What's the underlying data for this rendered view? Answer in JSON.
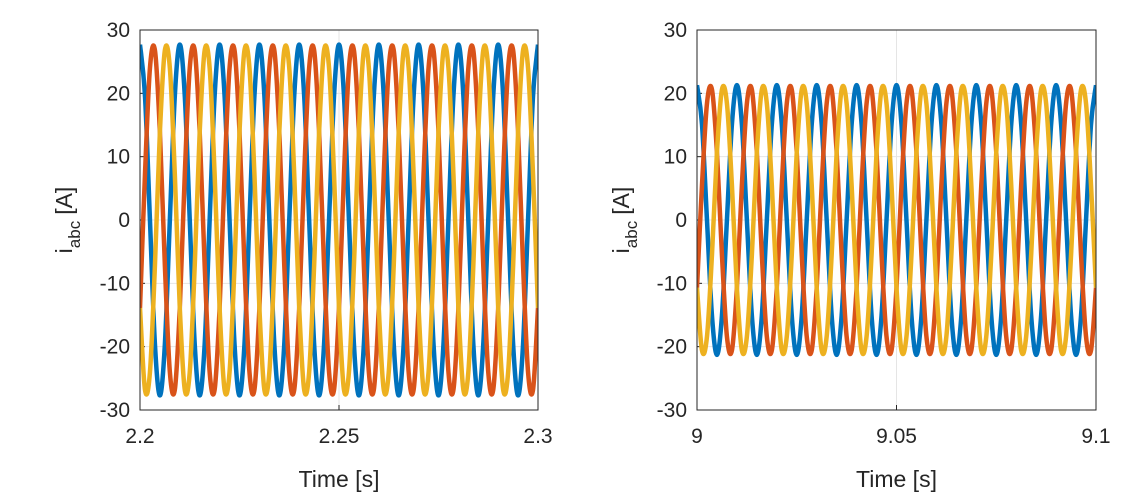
{
  "chart_data": [
    {
      "type": "line",
      "xlabel": "Time [s]",
      "ylabel": [
        "i",
        "abc",
        "[A]"
      ],
      "xlim": [
        2.2,
        2.3
      ],
      "xticks": [
        2.2,
        2.25,
        2.3
      ],
      "ylim": [
        -30,
        30
      ],
      "yticks": [
        30,
        20,
        10,
        0,
        -10,
        -20,
        -30
      ],
      "grid": true,
      "x": [
        2.2,
        2.20125,
        2.2025,
        2.20375,
        2.205,
        2.20625,
        2.2075,
        2.20875,
        2.21,
        2.21125,
        2.2125,
        2.21375,
        2.215,
        2.21625,
        2.2175,
        2.21875,
        2.22,
        2.22125,
        2.2225,
        2.22375,
        2.225,
        2.22625,
        2.2275,
        2.22875,
        2.23,
        2.23125,
        2.2325,
        2.23375,
        2.235,
        2.23625,
        2.2375,
        2.23875,
        2.24,
        2.24125,
        2.2425,
        2.24375,
        2.245,
        2.24625,
        2.2475,
        2.24875,
        2.25,
        2.25125,
        2.2525,
        2.25375,
        2.255,
        2.25625,
        2.2575,
        2.25875,
        2.26,
        2.26125,
        2.2625,
        2.26375,
        2.265,
        2.26625,
        2.2675,
        2.26875,
        2.27,
        2.27125,
        2.2725,
        2.27375,
        2.275,
        2.27625,
        2.2775,
        2.27875,
        2.28,
        2.28125,
        2.2825,
        2.28375,
        2.285,
        2.28625,
        2.2875,
        2.28875,
        2.29,
        2.29125,
        2.2925,
        2.29375,
        2.295,
        2.29625,
        2.2975,
        2.29875,
        2.3
      ],
      "series": [
        {
          "color": "#0072BD",
          "values": [
            27.7,
            19.6,
            0,
            -19.6,
            -27.7,
            -19.6,
            0,
            19.6,
            27.7,
            19.6,
            0,
            -19.6,
            -27.7,
            -19.6,
            0,
            19.6,
            27.7,
            19.6,
            0,
            -19.6,
            -27.7,
            -19.6,
            0,
            19.6,
            27.7,
            19.6,
            0,
            -19.6,
            -27.7,
            -19.6,
            0,
            19.6,
            27.7,
            19.6,
            0,
            -19.6,
            -27.7,
            -19.6,
            0,
            19.6,
            27.7,
            19.6,
            0,
            -19.6,
            -27.7,
            -19.6,
            0,
            19.6,
            27.7,
            19.6,
            0,
            -19.6,
            -27.7,
            -19.6,
            0,
            19.6,
            27.7,
            19.6,
            0,
            -19.6,
            -27.7,
            -19.6,
            0,
            19.6,
            27.7,
            19.6,
            0,
            -19.6,
            -27.7,
            -19.6,
            0,
            19.6,
            27.7,
            19.6,
            0,
            -19.6,
            -27.7,
            -19.6,
            0,
            19.6,
            27.7
          ]
        },
        {
          "color": "#D95319",
          "values": [
            -13.9,
            7.2,
            24.0,
            26.8,
            13.9,
            -7.2,
            -24.0,
            -26.8,
            -13.9,
            7.2,
            24.0,
            26.8,
            13.9,
            -7.2,
            -24.0,
            -26.8,
            -13.9,
            7.2,
            24.0,
            26.8,
            13.9,
            -7.2,
            -24.0,
            -26.8,
            -13.9,
            7.2,
            24.0,
            26.8,
            13.9,
            -7.2,
            -24.0,
            -26.8,
            -13.9,
            7.2,
            24.0,
            26.8,
            13.9,
            -7.2,
            -24.0,
            -26.8,
            -13.9,
            7.2,
            24.0,
            26.8,
            13.9,
            -7.2,
            -24.0,
            -26.8,
            -13.9,
            7.2,
            24.0,
            26.8,
            13.9,
            -7.2,
            -24.0,
            -26.8,
            -13.9,
            7.2,
            24.0,
            26.8,
            13.9,
            -7.2,
            -24.0,
            -26.8,
            -13.9,
            7.2,
            24.0,
            26.8,
            13.9,
            -7.2,
            -24.0,
            -26.8,
            -13.9,
            7.2,
            24.0,
            26.8,
            13.9,
            -7.2,
            -24.0,
            -26.8,
            -13.9
          ]
        },
        {
          "color": "#EDB120",
          "values": [
            -13.9,
            -26.8,
            -24.0,
            -7.2,
            13.9,
            26.8,
            24.0,
            7.2,
            -13.9,
            -26.8,
            -24.0,
            -7.2,
            13.9,
            26.8,
            24.0,
            7.2,
            -13.9,
            -26.8,
            -24.0,
            -7.2,
            13.9,
            26.8,
            24.0,
            7.2,
            -13.9,
            -26.8,
            -24.0,
            -7.2,
            13.9,
            26.8,
            24.0,
            7.2,
            -13.9,
            -26.8,
            -24.0,
            -7.2,
            13.9,
            26.8,
            24.0,
            7.2,
            -13.9,
            -26.8,
            -24.0,
            -7.2,
            13.9,
            26.8,
            24.0,
            7.2,
            -13.9,
            -26.8,
            -24.0,
            -7.2,
            13.9,
            26.8,
            24.0,
            7.2,
            -13.9,
            -26.8,
            -24.0,
            -7.2,
            13.9,
            26.8,
            24.0,
            7.2,
            -13.9,
            -26.8,
            -24.0,
            -7.2,
            13.9,
            26.8,
            24.0,
            7.2,
            -13.9,
            -26.8,
            -24.0,
            -7.2,
            13.9,
            26.8,
            24.0,
            7.2,
            -13.9
          ]
        }
      ]
    },
    {
      "type": "line",
      "xlabel": "Time [s]",
      "ylabel": [
        "i",
        "abc",
        "[A]"
      ],
      "xlim": [
        9,
        9.1
      ],
      "xticks": [
        9,
        9.05,
        9.1
      ],
      "ylim": [
        -30,
        30
      ],
      "yticks": [
        30,
        20,
        10,
        0,
        -10,
        -20,
        -30
      ],
      "grid": true,
      "x": [
        9,
        9.00125,
        9.0025,
        9.00375,
        9.005,
        9.00625,
        9.0075,
        9.00875,
        9.01,
        9.01125,
        9.0125,
        9.01375,
        9.015,
        9.01625,
        9.0175,
        9.01875,
        9.02,
        9.02125,
        9.0225,
        9.02375,
        9.025,
        9.02625,
        9.0275,
        9.02875,
        9.03,
        9.03125,
        9.0325,
        9.03375,
        9.035,
        9.03625,
        9.0375,
        9.03875,
        9.04,
        9.04125,
        9.0425,
        9.04375,
        9.045,
        9.04625,
        9.0475,
        9.04875,
        9.05,
        9.05125,
        9.0525,
        9.05375,
        9.055,
        9.05625,
        9.0575,
        9.05875,
        9.06,
        9.06125,
        9.0625,
        9.06375,
        9.065,
        9.06625,
        9.0675,
        9.06875,
        9.07,
        9.07125,
        9.0725,
        9.07375,
        9.075,
        9.07625,
        9.0775,
        9.07875,
        9.08,
        9.08125,
        9.0825,
        9.08375,
        9.085,
        9.08625,
        9.0875,
        9.08875,
        9.09,
        9.09125,
        9.0925,
        9.09375,
        9.095,
        9.09625,
        9.0975,
        9.09875,
        9.1
      ],
      "series": [
        {
          "color": "#0072BD",
          "values": [
            21.3,
            15.1,
            0,
            -15.1,
            -21.3,
            -15.1,
            0,
            15.1,
            21.3,
            15.1,
            0,
            -15.1,
            -21.3,
            -15.1,
            0,
            15.1,
            21.3,
            15.1,
            0,
            -15.1,
            -21.3,
            -15.1,
            0,
            15.1,
            21.3,
            15.1,
            0,
            -15.1,
            -21.3,
            -15.1,
            0,
            15.1,
            21.3,
            15.1,
            0,
            -15.1,
            -21.3,
            -15.1,
            0,
            15.1,
            21.3,
            15.1,
            0,
            -15.1,
            -21.3,
            -15.1,
            0,
            15.1,
            21.3,
            15.1,
            0,
            -15.1,
            -21.3,
            -15.1,
            0,
            15.1,
            21.3,
            15.1,
            0,
            -15.1,
            -21.3,
            -15.1,
            0,
            15.1,
            21.3,
            15.1,
            0,
            -15.1,
            -21.3,
            -15.1,
            0,
            15.1,
            21.3,
            15.1,
            0,
            -15.1,
            -21.3,
            -15.1,
            0,
            15.1,
            21.3
          ]
        },
        {
          "color": "#D95319",
          "values": [
            -10.7,
            5.5,
            18.4,
            20.6,
            10.7,
            -5.5,
            -18.4,
            -20.6,
            -10.7,
            5.5,
            18.4,
            20.6,
            10.7,
            -5.5,
            -18.4,
            -20.6,
            -10.7,
            5.5,
            18.4,
            20.6,
            10.7,
            -5.5,
            -18.4,
            -20.6,
            -10.7,
            5.5,
            18.4,
            20.6,
            10.7,
            -5.5,
            -18.4,
            -20.6,
            -10.7,
            5.5,
            18.4,
            20.6,
            10.7,
            -5.5,
            -18.4,
            -20.6,
            -10.7,
            5.5,
            18.4,
            20.6,
            10.7,
            -5.5,
            -18.4,
            -20.6,
            -10.7,
            5.5,
            18.4,
            20.6,
            10.7,
            -5.5,
            -18.4,
            -20.6,
            -10.7,
            5.5,
            18.4,
            20.6,
            10.7,
            -5.5,
            -18.4,
            -20.6,
            -10.7,
            5.5,
            18.4,
            20.6,
            10.7,
            -5.5,
            -18.4,
            -20.6,
            -10.7,
            5.5,
            18.4,
            20.6,
            10.7,
            -5.5,
            -18.4,
            -20.6,
            -10.7
          ]
        },
        {
          "color": "#EDB120",
          "values": [
            -10.7,
            -20.6,
            -18.4,
            -5.5,
            10.7,
            20.6,
            18.4,
            5.5,
            -10.7,
            -20.6,
            -18.4,
            -5.5,
            10.7,
            20.6,
            18.4,
            5.5,
            -10.7,
            -20.6,
            -18.4,
            -5.5,
            10.7,
            20.6,
            18.4,
            5.5,
            -10.7,
            -20.6,
            -18.4,
            -5.5,
            10.7,
            20.6,
            18.4,
            5.5,
            -10.7,
            -20.6,
            -18.4,
            -5.5,
            10.7,
            20.6,
            18.4,
            5.5,
            -10.7,
            -20.6,
            -18.4,
            -5.5,
            10.7,
            20.6,
            18.4,
            5.5,
            -10.7,
            -20.6,
            -18.4,
            -5.5,
            10.7,
            20.6,
            18.4,
            5.5,
            -10.7,
            -20.6,
            -18.4,
            -5.5,
            10.7,
            20.6,
            18.4,
            5.5,
            -10.7,
            -20.6,
            -18.4,
            -5.5,
            10.7,
            20.6,
            18.4,
            5.5,
            -10.7,
            -20.6,
            -18.4,
            -5.5,
            10.7,
            20.6,
            18.4,
            5.5,
            -10.7
          ]
        }
      ]
    }
  ]
}
